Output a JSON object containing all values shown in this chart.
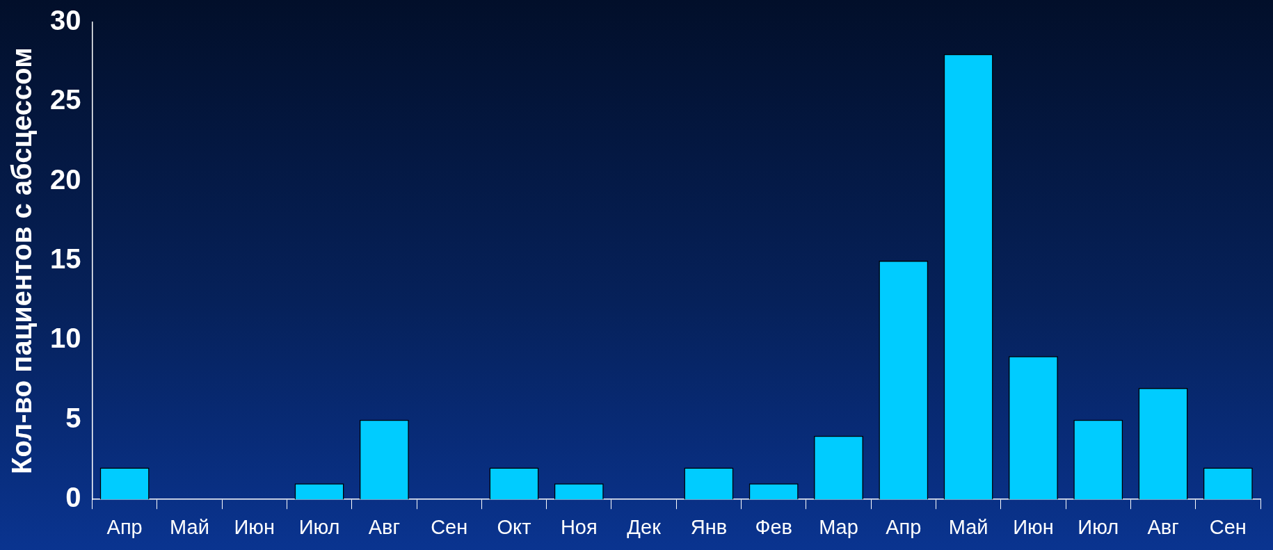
{
  "chart_data": {
    "type": "bar",
    "ylabel": "Кол-во пациентов с абсцессом",
    "categories": [
      "Апр",
      "Май",
      "Июн",
      "Июл",
      "Авг",
      "Сен",
      "Окт",
      "Ноя",
      "Дек",
      "Янв",
      "Фев",
      "Мар",
      "Апр",
      "Май",
      "Июн",
      "Июл",
      "Авг",
      "Сен"
    ],
    "values": [
      2,
      0,
      0,
      1,
      5,
      0,
      2,
      1,
      0,
      2,
      1,
      4,
      15,
      28,
      9,
      5,
      7,
      2
    ],
    "color": "#00ccff",
    "ylim": [
      0,
      30
    ],
    "yticks": [
      0,
      5,
      10,
      15,
      20,
      25,
      30
    ],
    "legend": false
  }
}
